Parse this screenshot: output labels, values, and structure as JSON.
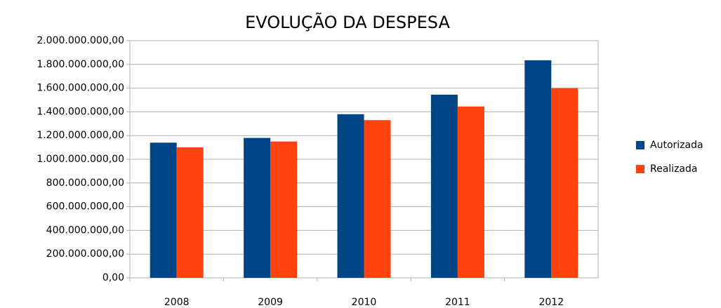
{
  "chart_data": {
    "type": "bar",
    "title": "EVOLUÇÃO DA DESPESA",
    "categories": [
      "2008",
      "2009",
      "2010",
      "2011",
      "2012"
    ],
    "series": [
      {
        "name": "Autorizada",
        "color": "#004586",
        "values": [
          1140000000,
          1180000000,
          1380000000,
          1545000000,
          1835000000
        ]
      },
      {
        "name": "Realizada",
        "color": "#ff420e",
        "values": [
          1100000000,
          1150000000,
          1330000000,
          1445000000,
          1600000000
        ]
      }
    ],
    "ylim": [
      0,
      2000000000
    ],
    "yticks": [
      {
        "value": 0,
        "label": "0,00"
      },
      {
        "value": 200000000,
        "label": "200.000.000,00"
      },
      {
        "value": 400000000,
        "label": "400.000.000,00"
      },
      {
        "value": 600000000,
        "label": "600.000.000,00"
      },
      {
        "value": 800000000,
        "label": "800.000.000,00"
      },
      {
        "value": 1000000000,
        "label": "1.000.000.000,00"
      },
      {
        "value": 1200000000,
        "label": "1.200.000.000,00"
      },
      {
        "value": 1400000000,
        "label": "1.400.000.000,00"
      },
      {
        "value": 1600000000,
        "label": "1.600.000.000,00"
      },
      {
        "value": 1800000000,
        "label": "1.800.000.000,00"
      },
      {
        "value": 2000000000,
        "label": "2.000.000.000,00"
      }
    ],
    "grid": true,
    "legend": "right"
  }
}
